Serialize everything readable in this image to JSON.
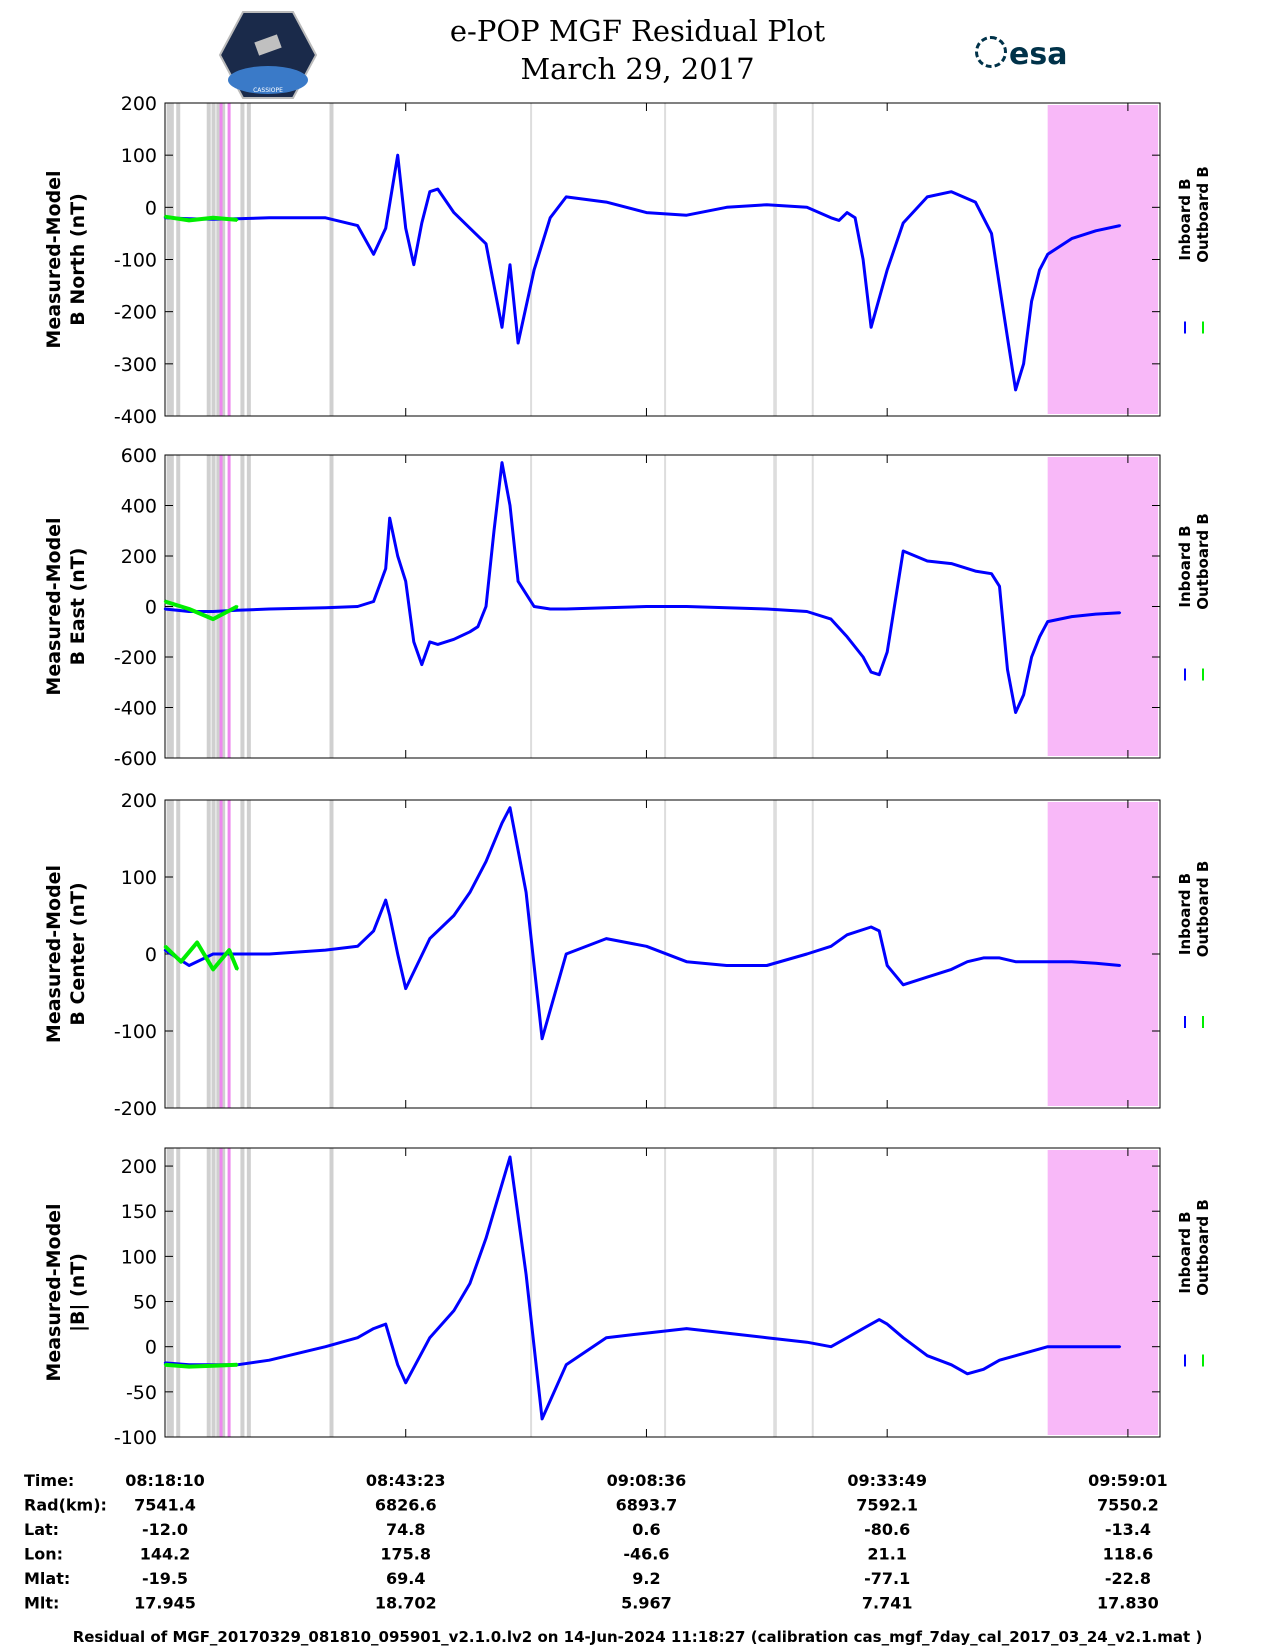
{
  "header": {
    "title_line1": "e-POP MGF Residual Plot",
    "title_line2": "March 29, 2017",
    "logo_left_text": "CASSIOPE",
    "logo_right_text": "esa"
  },
  "colors": {
    "inboard": "#0000ff",
    "outboard": "#00ee00",
    "magenta_band": "#f8b8f8",
    "grey_band": "#d0d0d0"
  },
  "legend": {
    "inboard": "Inboard B",
    "outboard": "Outboard B"
  },
  "chart_data": [
    {
      "type": "line",
      "ylabel_line1": "Measured-Model",
      "ylabel_line2": "B North (nT)",
      "ylim": [
        -400,
        200
      ],
      "yticks": [
        200,
        100,
        0,
        -100,
        -200,
        -300,
        -400
      ],
      "series": [
        {
          "name": "Inboard B",
          "x": [
            0,
            3,
            6,
            9,
            13,
            20,
            24,
            26,
            27.5,
            29,
            30,
            31,
            32,
            33,
            34,
            36,
            38,
            40,
            41,
            42,
            43,
            44,
            46,
            48,
            50,
            55,
            60,
            65,
            70,
            75,
            80,
            83,
            84,
            85,
            86,
            87,
            88,
            90,
            92,
            95,
            98,
            101,
            103,
            104,
            105,
            106,
            107,
            108,
            109,
            110,
            113,
            116,
            119
          ],
          "y": [
            -20,
            -22,
            -23,
            -22,
            -20,
            -20,
            -35,
            -90,
            -40,
            100,
            -40,
            -110,
            -30,
            30,
            35,
            -10,
            -40,
            -70,
            -150,
            -230,
            -110,
            -260,
            -120,
            -20,
            20,
            10,
            -10,
            -15,
            0,
            5,
            0,
            -20,
            -25,
            -10,
            -20,
            -100,
            -230,
            -120,
            -30,
            20,
            30,
            10,
            -50,
            -150,
            -250,
            -350,
            -300,
            -180,
            -120,
            -90,
            -60,
            -45,
            -35
          ]
        },
        {
          "name": "Outboard B",
          "x": [
            0,
            3,
            6,
            9
          ],
          "y": [
            -18,
            -25,
            -20,
            -24
          ]
        }
      ]
    },
    {
      "type": "line",
      "ylabel_line1": "Measured-Model",
      "ylabel_line2": "B East (nT)",
      "ylim": [
        -600,
        600
      ],
      "yticks": [
        600,
        400,
        200,
        0,
        -200,
        -400,
        -600
      ],
      "series": [
        {
          "name": "Inboard B",
          "x": [
            0,
            3,
            6,
            9,
            13,
            20,
            24,
            26,
            27.5,
            28,
            29,
            30,
            31,
            32,
            33,
            34,
            36,
            38,
            39,
            40,
            41,
            42,
            43,
            44,
            46,
            48,
            50,
            55,
            60,
            65,
            70,
            75,
            80,
            83,
            85,
            87,
            88,
            89,
            90,
            92,
            95,
            98,
            101,
            103,
            104,
            105,
            106,
            107,
            108,
            109,
            110,
            113,
            116,
            119
          ],
          "y": [
            -10,
            -20,
            -20,
            -15,
            -10,
            -5,
            0,
            20,
            150,
            350,
            200,
            100,
            -140,
            -230,
            -140,
            -150,
            -130,
            -100,
            -80,
            0,
            300,
            570,
            400,
            100,
            0,
            -10,
            -10,
            -5,
            0,
            0,
            -5,
            -10,
            -20,
            -50,
            -120,
            -200,
            -260,
            -270,
            -180,
            220,
            180,
            170,
            140,
            130,
            80,
            -250,
            -420,
            -350,
            -200,
            -120,
            -60,
            -40,
            -30,
            -25
          ]
        },
        {
          "name": "Outboard B",
          "x": [
            0,
            3,
            6,
            9
          ],
          "y": [
            20,
            -10,
            -50,
            0
          ]
        }
      ]
    },
    {
      "type": "line",
      "ylabel_line1": "Measured-Model",
      "ylabel_line2": "B Center (nT)",
      "ylim": [
        -200,
        200
      ],
      "yticks": [
        200,
        100,
        0,
        -100,
        -200
      ],
      "series": [
        {
          "name": "Inboard B",
          "x": [
            0,
            3,
            6,
            9,
            13,
            20,
            24,
            26,
            27.5,
            28,
            29,
            30,
            33,
            36,
            38,
            40,
            42,
            43,
            45,
            47,
            50,
            55,
            60,
            65,
            70,
            75,
            80,
            83,
            85,
            88,
            89,
            90,
            92,
            95,
            98,
            100,
            102,
            104,
            106,
            110,
            113,
            116,
            119
          ],
          "y": [
            5,
            -15,
            0,
            0,
            0,
            5,
            10,
            30,
            70,
            50,
            0,
            -45,
            20,
            50,
            80,
            120,
            170,
            190,
            80,
            -110,
            0,
            20,
            10,
            -10,
            -15,
            -15,
            0,
            10,
            25,
            35,
            30,
            -15,
            -40,
            -30,
            -20,
            -10,
            -5,
            -5,
            -10,
            -10,
            -10,
            -12,
            -15
          ]
        },
        {
          "name": "Outboard B",
          "x": [
            0,
            2,
            4,
            6,
            8,
            9
          ],
          "y": [
            10,
            -10,
            15,
            -20,
            5,
            -20
          ]
        }
      ]
    },
    {
      "type": "line",
      "ylabel_line1": "Measured-Model",
      "ylabel_line2": "|B| (nT)",
      "ylim": [
        -100,
        220
      ],
      "yticks": [
        200,
        150,
        100,
        50,
        0,
        -50,
        -100
      ],
      "series": [
        {
          "name": "Inboard B",
          "x": [
            0,
            3,
            6,
            9,
            13,
            20,
            24,
            26,
            27.5,
            28,
            29,
            30,
            33,
            36,
            38,
            40,
            42,
            43,
            45,
            47,
            50,
            55,
            60,
            65,
            70,
            75,
            80,
            83,
            85,
            87,
            88,
            89,
            90,
            92,
            95,
            98,
            100,
            102,
            104,
            106,
            110,
            113,
            116,
            119
          ],
          "y": [
            -18,
            -20,
            -20,
            -20,
            -15,
            0,
            10,
            20,
            25,
            10,
            -20,
            -40,
            10,
            40,
            70,
            120,
            180,
            210,
            80,
            -80,
            -20,
            10,
            15,
            20,
            15,
            10,
            5,
            0,
            10,
            20,
            25,
            30,
            25,
            10,
            -10,
            -20,
            -30,
            -25,
            -15,
            -10,
            0,
            0,
            0,
            0
          ]
        },
        {
          "name": "Outboard B",
          "x": [
            0,
            3,
            6,
            9
          ],
          "y": [
            -20,
            -22,
            -21,
            -20
          ]
        }
      ]
    }
  ],
  "xaxis": {
    "row_labels": [
      "Time:",
      "Rad(km):",
      "Lat:",
      "Lon:",
      "Mlat:",
      "Mlt:"
    ],
    "columns": [
      {
        "minutes": 0,
        "values": [
          "08:18:10",
          "7541.4",
          "-12.0",
          "144.2",
          "-19.5",
          "17.945"
        ]
      },
      {
        "minutes": 30,
        "values": [
          "08:43:23",
          "6826.6",
          "74.8",
          "175.8",
          "69.4",
          "18.702"
        ]
      },
      {
        "minutes": 60,
        "values": [
          "09:08:36",
          "6893.7",
          "0.6",
          "-46.6",
          "9.2",
          "5.967"
        ]
      },
      {
        "minutes": 90,
        "values": [
          "09:33:49",
          "7592.1",
          "-80.6",
          "21.1",
          "-77.1",
          "7.741"
        ]
      },
      {
        "minutes": 120,
        "values": [
          "09:59:01",
          "7550.2",
          "-13.4",
          "118.6",
          "-22.8",
          "17.830"
        ]
      }
    ]
  },
  "bands": {
    "grey_minutes": [
      0.2,
      0.6,
      1.4,
      5.2,
      5.8,
      6.4,
      7.0,
      9.4,
      10.2,
      20.5
    ],
    "magenta_minutes": [
      6.8,
      7.8
    ],
    "light_grey_minutes": [
      45.5,
      62.2,
      75.8,
      76.0,
      80.6
    ],
    "magenta_block_start_minutes": 110
  },
  "footer": "Residual of MGF_20170329_081810_095901_v2.1.0.lv2 on 14-Jun-2024 11:18:27 (calibration cas_mgf_7day_cal_2017_03_24_v2.1.mat )"
}
